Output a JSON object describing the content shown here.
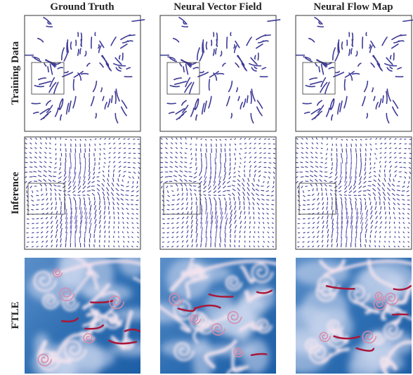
{
  "columns": [
    "Ground Truth",
    "Neural Vector Field",
    "Neural Flow Map"
  ],
  "rows": [
    "Training Data",
    "Inference",
    "FTLE"
  ]
}
